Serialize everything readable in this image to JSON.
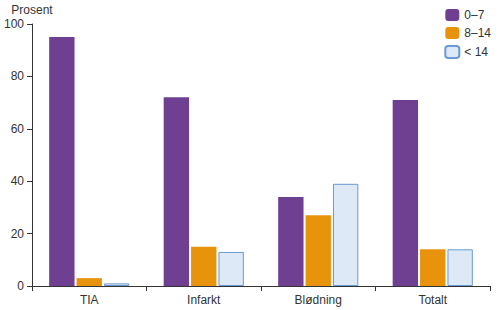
{
  "chart_data": {
    "type": "bar",
    "ylabel": "Prosent",
    "categories": [
      "TIA",
      "Infarkt",
      "Blødning",
      "Totalt"
    ],
    "series": [
      {
        "name": "0–7",
        "color": "#6f3f91",
        "values": [
          95,
          72,
          34,
          71
        ]
      },
      {
        "name": "8–14",
        "color": "#e8930c",
        "values": [
          3,
          15,
          27,
          14
        ]
      },
      {
        "name": "< 14",
        "color": "#dde9f7",
        "values": [
          1,
          13,
          39,
          14
        ]
      }
    ],
    "ylim": [
      0,
      100
    ],
    "yticks": [
      0,
      20,
      40,
      60,
      80,
      100
    ],
    "grid": false,
    "legend": "top-right"
  }
}
